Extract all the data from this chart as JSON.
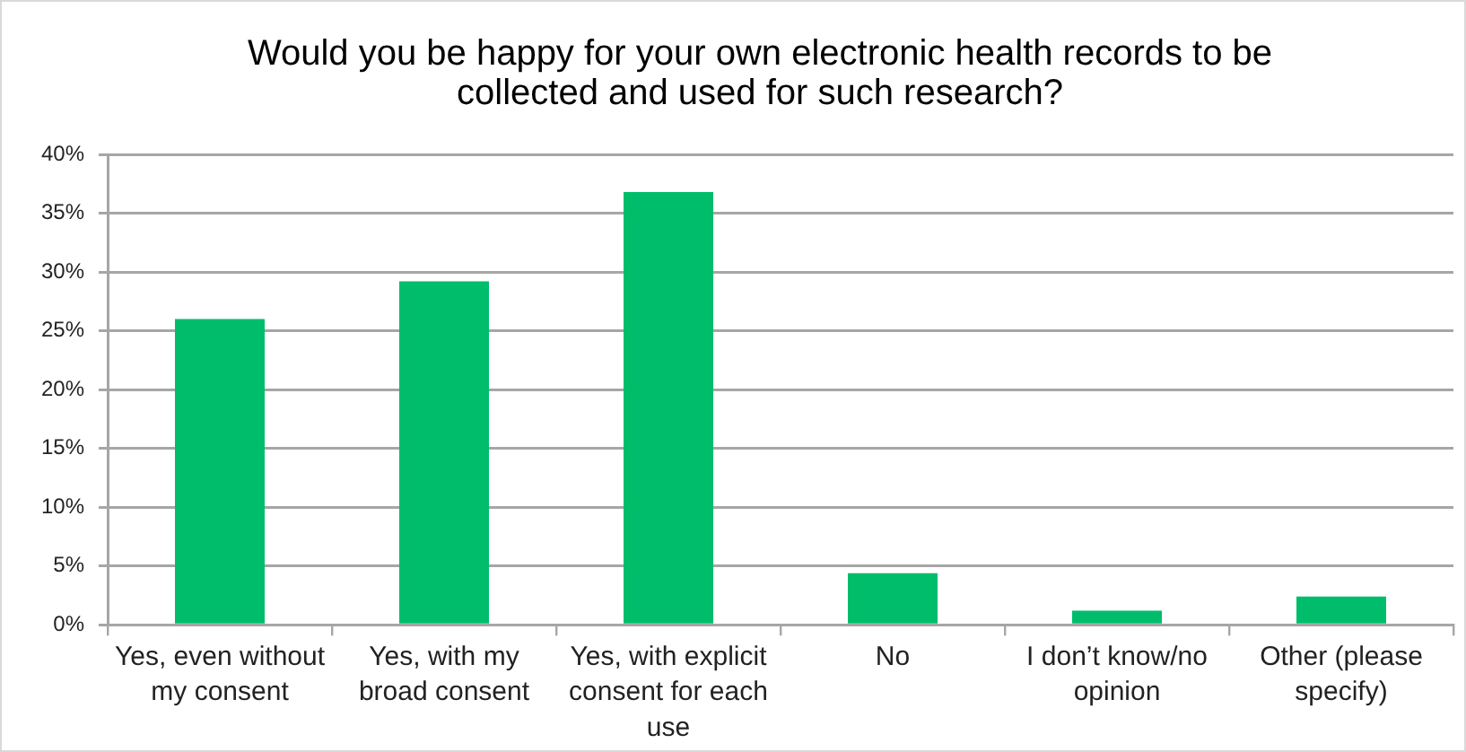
{
  "chart_data": {
    "type": "bar",
    "title": "Would you be happy for your own electronic health records to be collected and used for such research?",
    "categories": [
      "Yes, even without my consent",
      "Yes, with my broad consent",
      "Yes, with explicit consent for each use",
      "No",
      "I don’t know/no opinion",
      "Other (please specify)"
    ],
    "values": [
      26,
      29.2,
      36.8,
      4.4,
      1.2,
      2.4
    ],
    "color": "#00bd6c",
    "ylim": [
      0,
      40
    ],
    "yticks": [
      {
        "value": 0,
        "label": "0%"
      },
      {
        "value": 5,
        "label": "5%"
      },
      {
        "value": 10,
        "label": "10%"
      },
      {
        "value": 15,
        "label": "15%"
      },
      {
        "value": 20,
        "label": "20%"
      },
      {
        "value": 25,
        "label": "25%"
      },
      {
        "value": 30,
        "label": "30%"
      },
      {
        "value": 35,
        "label": "35%"
      },
      {
        "value": 40,
        "label": "40%"
      }
    ],
    "grid": "y"
  }
}
